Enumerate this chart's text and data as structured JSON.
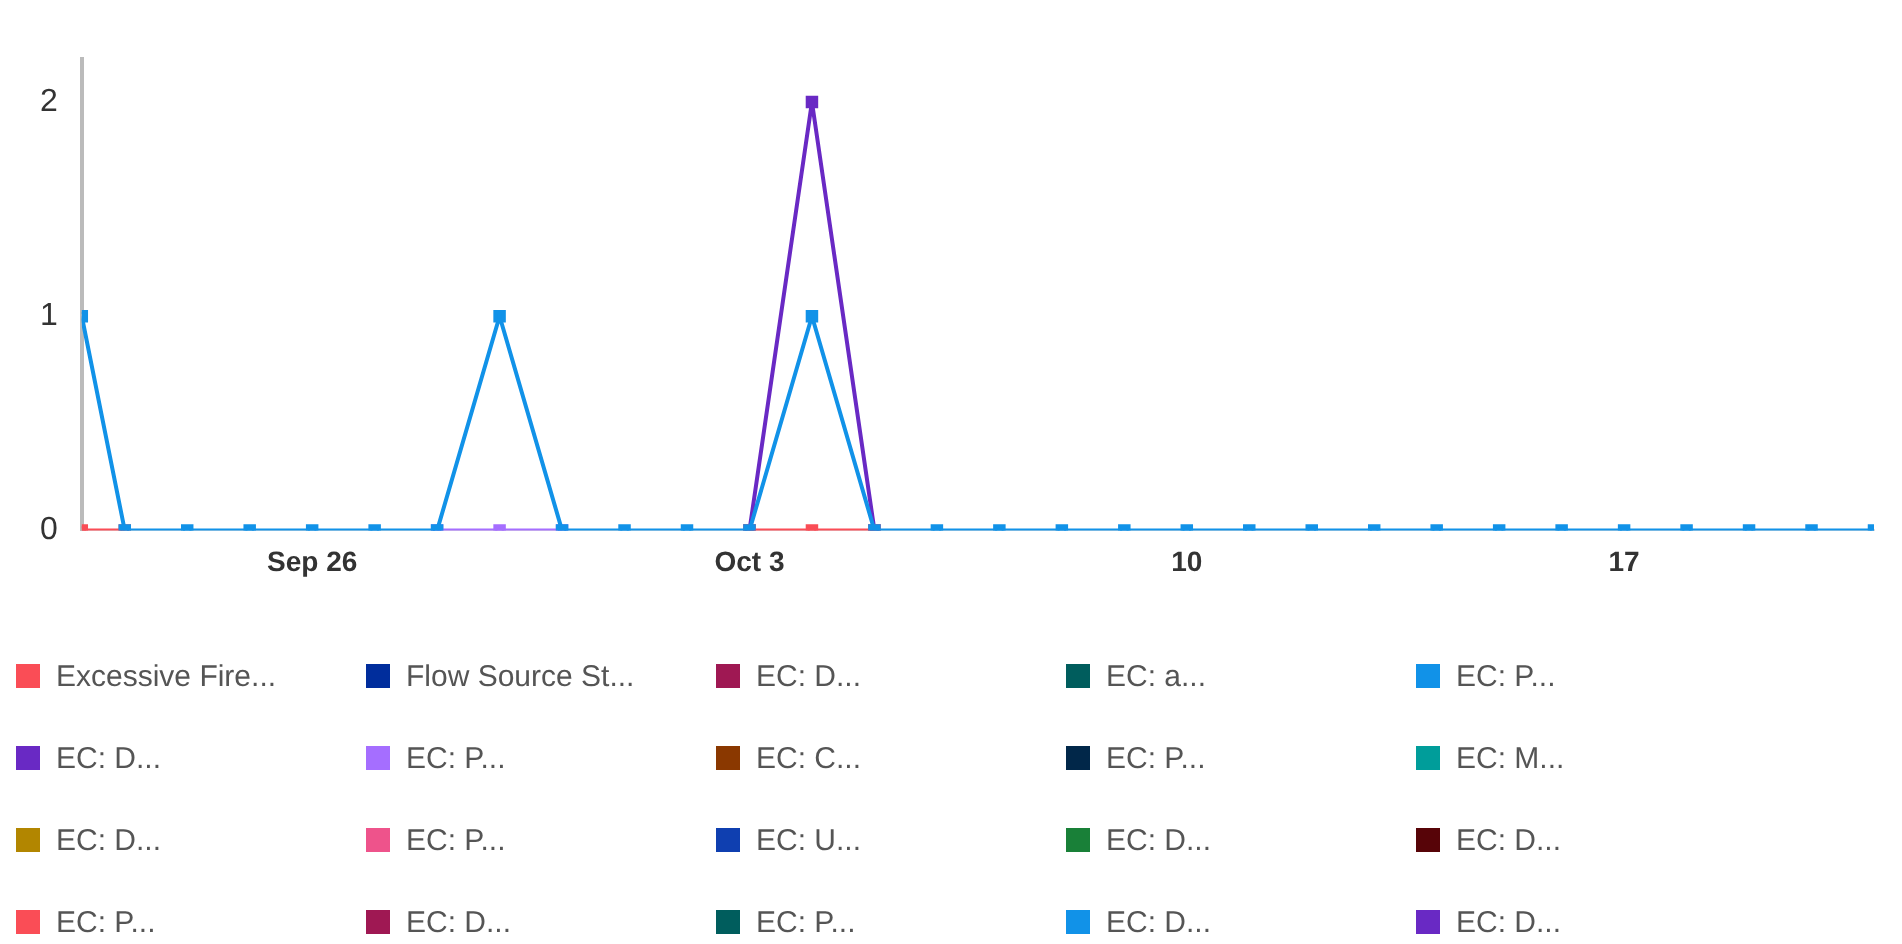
{
  "chart_data": {
    "type": "line",
    "x": [
      "--09-22T07:30",
      "--09-23",
      "--09-24",
      "--09-25",
      "--09-26",
      "--09-27",
      "--09-28",
      "--09-29",
      "--09-30",
      "--10-01",
      "--10-02",
      "--10-03",
      "--10-04",
      "--10-05",
      "--10-06",
      "--10-07",
      "--10-08",
      "--10-09",
      "--10-10",
      "--10-11",
      "--10-12",
      "--10-13",
      "--10-14",
      "--10-15",
      "--10-16",
      "--10-17",
      "--10-18",
      "--10-19",
      "--10-20",
      "--10-21"
    ],
    "xlim": [
      "--09-22T07:30",
      "--10-21"
    ],
    "xticks": [
      {
        "value": "--09-26",
        "label": "Sep 26"
      },
      {
        "value": "--10-03",
        "label": "Oct 3"
      },
      {
        "value": "--10-10",
        "label": "10"
      },
      {
        "value": "--10-17",
        "label": "17"
      }
    ],
    "ylim": [
      0,
      2.2
    ],
    "yticks": [
      0,
      1,
      2
    ],
    "grid": false,
    "legend": "bottom",
    "marker": "square",
    "series": [
      {
        "name": "Excessive Fire...",
        "color": "#fa4d56",
        "values": [
          0,
          0,
          null,
          null,
          null,
          null,
          null,
          null,
          null,
          null,
          null,
          0,
          0,
          0,
          null,
          null,
          null,
          null,
          null,
          null,
          null,
          null,
          null,
          null,
          null,
          null,
          null,
          null,
          null,
          null
        ]
      },
      {
        "name": "Flow Source St...",
        "color": "#002d9c",
        "values": [
          null,
          null,
          null,
          null,
          null,
          null,
          null,
          null,
          null,
          null,
          null,
          null,
          null,
          null,
          null,
          null,
          null,
          null,
          null,
          null,
          null,
          null,
          null,
          null,
          null,
          null,
          null,
          null,
          null,
          null
        ]
      },
      {
        "name": "EC: D...",
        "color": "#9f1853",
        "values": [
          null,
          null,
          null,
          null,
          null,
          null,
          null,
          null,
          null,
          null,
          null,
          null,
          null,
          null,
          null,
          null,
          null,
          null,
          null,
          null,
          null,
          null,
          null,
          null,
          null,
          null,
          null,
          null,
          null,
          null
        ]
      },
      {
        "name": "EC: a...",
        "color": "#005d5d",
        "values": [
          null,
          null,
          null,
          null,
          null,
          null,
          null,
          null,
          null,
          null,
          null,
          null,
          null,
          null,
          null,
          null,
          null,
          null,
          null,
          null,
          null,
          null,
          null,
          null,
          null,
          null,
          null,
          null,
          null,
          null
        ]
      },
      {
        "name": "EC: P...",
        "color": "#1192e8",
        "values": [
          1,
          0,
          0,
          0,
          0,
          0,
          0,
          1,
          0,
          0,
          0,
          0,
          1,
          0,
          0,
          0,
          0,
          0,
          0,
          0,
          0,
          0,
          0,
          0,
          0,
          0,
          0,
          0,
          0,
          0
        ]
      },
      {
        "name": "EC: D...",
        "color": "#6929c4",
        "values": [
          null,
          null,
          null,
          null,
          null,
          null,
          null,
          null,
          null,
          null,
          null,
          0,
          2,
          0,
          null,
          null,
          null,
          null,
          null,
          null,
          null,
          null,
          null,
          null,
          null,
          null,
          null,
          null,
          null,
          null
        ]
      },
      {
        "name": "EC: P...",
        "color": "#a56eff",
        "values": [
          null,
          null,
          null,
          null,
          null,
          null,
          0,
          0,
          0,
          null,
          null,
          null,
          null,
          null,
          null,
          null,
          null,
          null,
          null,
          null,
          null,
          null,
          null,
          null,
          null,
          null,
          null,
          null,
          null,
          null
        ]
      },
      {
        "name": "EC: C...",
        "color": "#8a3800",
        "values": [
          null,
          null,
          null,
          null,
          null,
          null,
          null,
          null,
          null,
          null,
          null,
          null,
          null,
          null,
          null,
          null,
          null,
          null,
          null,
          null,
          null,
          null,
          null,
          null,
          null,
          null,
          null,
          null,
          null,
          null
        ]
      },
      {
        "name": "EC: P...",
        "color": "#012749",
        "values": [
          null,
          null,
          null,
          null,
          null,
          null,
          null,
          null,
          null,
          null,
          null,
          null,
          null,
          null,
          null,
          null,
          null,
          null,
          null,
          null,
          null,
          null,
          null,
          null,
          null,
          null,
          null,
          null,
          null,
          null
        ]
      },
      {
        "name": "EC: M...",
        "color": "#009d9a",
        "values": [
          null,
          null,
          null,
          null,
          null,
          null,
          null,
          null,
          null,
          null,
          null,
          null,
          null,
          null,
          null,
          null,
          null,
          null,
          null,
          null,
          null,
          null,
          null,
          null,
          null,
          null,
          null,
          null,
          null,
          null
        ]
      },
      {
        "name": "EC: D...",
        "color": "#b28600",
        "values": [
          null,
          null,
          null,
          null,
          null,
          null,
          null,
          null,
          null,
          null,
          null,
          null,
          null,
          null,
          null,
          null,
          null,
          null,
          null,
          null,
          null,
          null,
          null,
          null,
          null,
          null,
          null,
          null,
          null,
          null
        ]
      },
      {
        "name": "EC: P...",
        "color": "#ee538b",
        "values": [
          null,
          null,
          null,
          null,
          null,
          null,
          null,
          null,
          null,
          null,
          null,
          null,
          null,
          null,
          null,
          null,
          null,
          null,
          null,
          null,
          null,
          null,
          null,
          null,
          null,
          null,
          null,
          null,
          null,
          null
        ]
      },
      {
        "name": "EC: U...",
        "color": "#0f3fb0",
        "values": [
          null,
          null,
          null,
          null,
          null,
          null,
          null,
          null,
          null,
          null,
          null,
          null,
          null,
          null,
          null,
          null,
          null,
          null,
          null,
          null,
          null,
          null,
          null,
          null,
          null,
          null,
          null,
          null,
          null,
          null
        ]
      },
      {
        "name": "EC: D...",
        "color": "#198038",
        "values": [
          null,
          null,
          null,
          null,
          null,
          null,
          null,
          null,
          null,
          null,
          null,
          null,
          null,
          null,
          null,
          null,
          null,
          null,
          null,
          null,
          null,
          null,
          null,
          null,
          null,
          null,
          null,
          null,
          null,
          null
        ]
      },
      {
        "name": "EC: D...",
        "color": "#570408",
        "values": [
          null,
          null,
          null,
          null,
          null,
          null,
          null,
          null,
          null,
          null,
          null,
          null,
          null,
          null,
          null,
          null,
          null,
          null,
          null,
          null,
          null,
          null,
          null,
          null,
          null,
          null,
          null,
          null,
          null,
          null
        ]
      },
      {
        "name": "EC: P...",
        "color": "#fa4d56",
        "values": [
          null,
          null,
          null,
          null,
          null,
          null,
          null,
          null,
          null,
          null,
          null,
          null,
          null,
          null,
          null,
          null,
          null,
          null,
          null,
          null,
          null,
          null,
          null,
          null,
          null,
          null,
          null,
          null,
          null,
          null
        ]
      },
      {
        "name": "EC: D...",
        "color": "#9f1853",
        "values": [
          null,
          null,
          null,
          null,
          null,
          null,
          null,
          null,
          null,
          null,
          null,
          null,
          null,
          null,
          null,
          null,
          null,
          null,
          null,
          null,
          null,
          null,
          null,
          null,
          null,
          null,
          null,
          null,
          null,
          null
        ]
      },
      {
        "name": "EC: P...",
        "color": "#005d5d",
        "values": [
          null,
          null,
          null,
          null,
          null,
          null,
          null,
          null,
          null,
          null,
          null,
          null,
          null,
          null,
          null,
          null,
          null,
          null,
          null,
          null,
          null,
          null,
          null,
          null,
          null,
          null,
          null,
          null,
          null,
          null
        ]
      },
      {
        "name": "EC: D...",
        "color": "#1192e8",
        "values": [
          null,
          null,
          null,
          null,
          null,
          null,
          null,
          null,
          null,
          null,
          null,
          null,
          null,
          null,
          null,
          null,
          null,
          null,
          null,
          null,
          null,
          null,
          null,
          null,
          null,
          null,
          null,
          null,
          null,
          null
        ]
      },
      {
        "name": "EC: D...",
        "color": "#6929c4",
        "values": [
          null,
          null,
          null,
          null,
          null,
          null,
          null,
          null,
          null,
          null,
          null,
          null,
          null,
          null,
          null,
          null,
          null,
          null,
          null,
          null,
          null,
          null,
          null,
          null,
          null,
          null,
          null,
          null,
          null,
          null
        ]
      }
    ]
  }
}
